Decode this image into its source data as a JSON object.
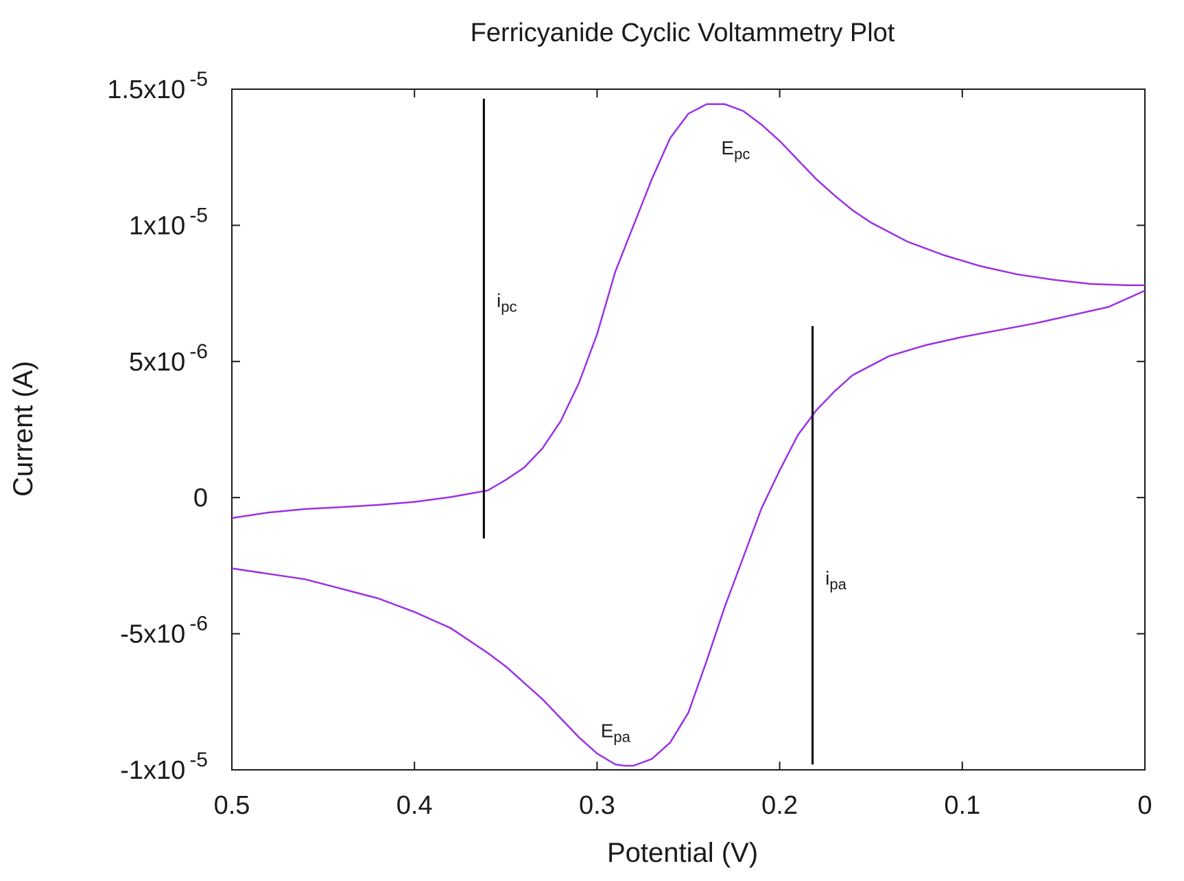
{
  "chart_data": {
    "type": "line",
    "title": "Ferricyanide Cyclic Voltammetry Plot",
    "xlabel": "Potential (V)",
    "ylabel": "Current (A)",
    "xlim": [
      0.5,
      0
    ],
    "ylim": [
      -1e-05,
      1.5e-05
    ],
    "x_reversed": true,
    "grid": false,
    "legend": "none",
    "line_color": "#9b30e6",
    "x_ticks": [
      {
        "value": 0.5,
        "label": "0.5"
      },
      {
        "value": 0.4,
        "label": "0.4"
      },
      {
        "value": 0.3,
        "label": "0.3"
      },
      {
        "value": 0.2,
        "label": "0.2"
      },
      {
        "value": 0.1,
        "label": "0.1"
      },
      {
        "value": 0,
        "label": "0"
      }
    ],
    "y_ticks": [
      {
        "value": 1.5e-05,
        "mantissa": "1.5x10",
        "exponent": "-5"
      },
      {
        "value": 1e-05,
        "mantissa": "1x10",
        "exponent": "-5"
      },
      {
        "value": 5e-06,
        "mantissa": "5x10",
        "exponent": "-6"
      },
      {
        "value": 0,
        "mantissa": "0",
        "exponent": ""
      },
      {
        "value": -5e-06,
        "mantissa": "-5x10",
        "exponent": "-6"
      },
      {
        "value": -1e-05,
        "mantissa": "-1x10",
        "exponent": "-5"
      }
    ],
    "series": [
      {
        "x": [
          0.5,
          0.48,
          0.46,
          0.44,
          0.42,
          0.4,
          0.38,
          0.36,
          0.35,
          0.34,
          0.33,
          0.32,
          0.31,
          0.3,
          0.29,
          0.28,
          0.27,
          0.26,
          0.25,
          0.24,
          0.23,
          0.22,
          0.21,
          0.2,
          0.19,
          0.18,
          0.17,
          0.16,
          0.15,
          0.13,
          0.11,
          0.09,
          0.07,
          0.05,
          0.03,
          0.01,
          0.0
        ],
        "y": [
          -7.5e-07,
          -5.5e-07,
          -4.2e-07,
          -3.5e-07,
          -2.7e-07,
          -1.6e-07,
          2e-08,
          2.6e-07,
          6.5e-07,
          1.1e-06,
          1.8e-06,
          2.8e-06,
          4.2e-06,
          6e-06,
          8.3e-06,
          1e-05,
          1.17e-05,
          1.32e-05,
          1.41e-05,
          1.445e-05,
          1.445e-05,
          1.42e-05,
          1.37e-05,
          1.31e-05,
          1.24e-05,
          1.17e-05,
          1.11e-05,
          1.055e-05,
          1.01e-05,
          9.4e-06,
          8.9e-06,
          8.5e-06,
          8.2e-06,
          8e-06,
          7.85e-06,
          7.8e-06,
          7.8e-06
        ]
      },
      {
        "x": [
          0.0,
          0.02,
          0.04,
          0.06,
          0.08,
          0.1,
          0.12,
          0.14,
          0.16,
          0.17,
          0.18,
          0.19,
          0.2,
          0.21,
          0.22,
          0.23,
          0.24,
          0.25,
          0.26,
          0.27,
          0.28,
          0.285,
          0.29,
          0.3,
          0.31,
          0.32,
          0.33,
          0.34,
          0.35,
          0.36,
          0.38,
          0.4,
          0.42,
          0.44,
          0.46,
          0.48,
          0.5
        ],
        "y": [
          7.6e-06,
          7e-06,
          6.7e-06,
          6.4e-06,
          6.15e-06,
          5.9e-06,
          5.6e-06,
          5.2e-06,
          4.5e-06,
          3.9e-06,
          3.2e-06,
          2.3e-06,
          1e-06,
          -4e-07,
          -2.2e-06,
          -4e-06,
          -6e-06,
          -7.9e-06,
          -9e-06,
          -9.6e-06,
          -9.85e-06,
          -9.85e-06,
          -9.8e-06,
          -9.4e-06,
          -8.8e-06,
          -8.1e-06,
          -7.4e-06,
          -6.8e-06,
          -6.2e-06,
          -5.7e-06,
          -4.8e-06,
          -4.2e-06,
          -3.7e-06,
          -3.35e-06,
          -3e-06,
          -2.8e-06,
          -2.6e-06
        ]
      }
    ],
    "markers": [
      {
        "name": "ipc",
        "x": 0.362,
        "y0": -1.5e-06,
        "y1": 1.465e-05
      },
      {
        "name": "ipa",
        "x": 0.182,
        "y0": -9.8e-06,
        "y1": 6.3e-06
      }
    ],
    "annotations": [
      {
        "base": "i",
        "sub": "pc",
        "x": 0.355,
        "y": 7e-06
      },
      {
        "base": "E",
        "sub": "pc",
        "x": 0.232,
        "y": 1.26e-05
      },
      {
        "base": "i",
        "sub": "pa",
        "x": 0.175,
        "y": -3.2e-06
      },
      {
        "base": "E",
        "sub": "pa",
        "x": 0.298,
        "y": -8.8e-06
      }
    ]
  }
}
